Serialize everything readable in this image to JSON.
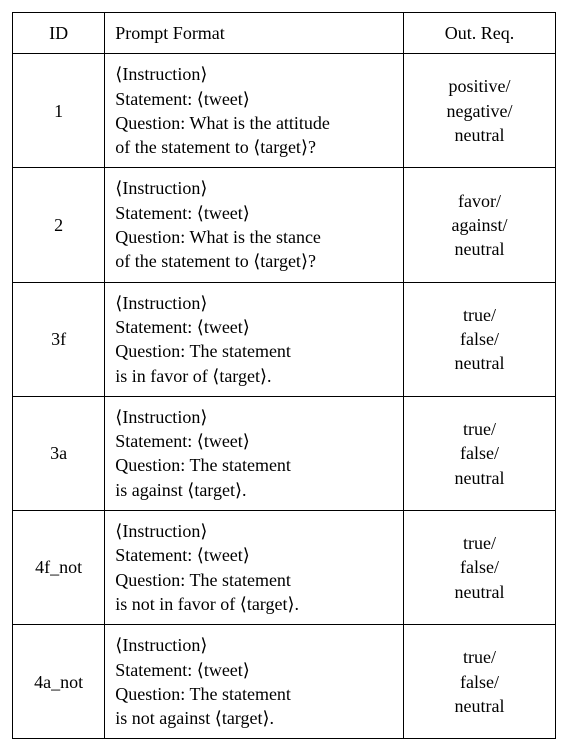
{
  "table": {
    "headers": {
      "id": "ID",
      "prompt": "Prompt Format",
      "out": "Out. Req."
    },
    "rows": [
      {
        "id": "1",
        "prompt_l1a": "⟨",
        "prompt_l1b": "Instruction",
        "prompt_l1c": "⟩",
        "prompt_l2a": "Statement: ⟨",
        "prompt_l2b": "tweet",
        "prompt_l2c": "⟩",
        "prompt_l3": "Question: What is the attitude",
        "prompt_l4a": "of the statement to ⟨",
        "prompt_l4b": "target",
        "prompt_l4c": "⟩?",
        "out_l1": "positive/",
        "out_l2": "negative/",
        "out_l3": "neutral"
      },
      {
        "id": "2",
        "prompt_l1a": "⟨",
        "prompt_l1b": "Instruction",
        "prompt_l1c": "⟩",
        "prompt_l2a": "Statement: ⟨",
        "prompt_l2b": "tweet",
        "prompt_l2c": "⟩",
        "prompt_l3": "Question: What is the stance",
        "prompt_l4a": "of the statement to ⟨",
        "prompt_l4b": "target",
        "prompt_l4c": "⟩?",
        "out_l1": "favor/",
        "out_l2": "against/",
        "out_l3": "neutral"
      },
      {
        "id": "3f",
        "prompt_l1a": "⟨",
        "prompt_l1b": "Instruction",
        "prompt_l1c": "⟩",
        "prompt_l2a": "Statement: ⟨",
        "prompt_l2b": "tweet",
        "prompt_l2c": "⟩",
        "prompt_l3": "Question: The statement",
        "prompt_l4a": "is in favor of ⟨",
        "prompt_l4b": "target",
        "prompt_l4c": "⟩.",
        "out_l1": "true/",
        "out_l2": "false/",
        "out_l3": "neutral"
      },
      {
        "id": "3a",
        "prompt_l1a": "⟨",
        "prompt_l1b": "Instruction",
        "prompt_l1c": "⟩",
        "prompt_l2a": "Statement: ⟨",
        "prompt_l2b": "tweet",
        "prompt_l2c": "⟩",
        "prompt_l3": "Question: The statement",
        "prompt_l4a": "is against ⟨",
        "prompt_l4b": "target",
        "prompt_l4c": "⟩.",
        "out_l1": "true/",
        "out_l2": "false/",
        "out_l3": "neutral"
      },
      {
        "id": "4f_not",
        "prompt_l1a": "⟨",
        "prompt_l1b": "Instruction",
        "prompt_l1c": "⟩",
        "prompt_l2a": "Statement: ⟨",
        "prompt_l2b": "tweet",
        "prompt_l2c": "⟩",
        "prompt_l3": "Question: The statement",
        "prompt_l4a": "is not in favor of ⟨",
        "prompt_l4b": "target",
        "prompt_l4c": "⟩.",
        "out_l1": "true/",
        "out_l2": "false/",
        "out_l3": "neutral"
      },
      {
        "id": "4a_not",
        "prompt_l1a": "⟨",
        "prompt_l1b": "Instruction",
        "prompt_l1c": "⟩",
        "prompt_l2a": "Statement: ⟨",
        "prompt_l2b": "tweet",
        "prompt_l2c": "⟩",
        "prompt_l3": "Question: The statement",
        "prompt_l4a": "is not against ⟨",
        "prompt_l4b": "target",
        "prompt_l4c": "⟩.",
        "out_l1": "true/",
        "out_l2": "false/",
        "out_l3": "neutral"
      }
    ],
    "colors": {
      "border": "#000000",
      "background": "#ffffff",
      "text": "#000000"
    },
    "font": {
      "family": "Times New Roman",
      "size_pt": 14
    }
  }
}
